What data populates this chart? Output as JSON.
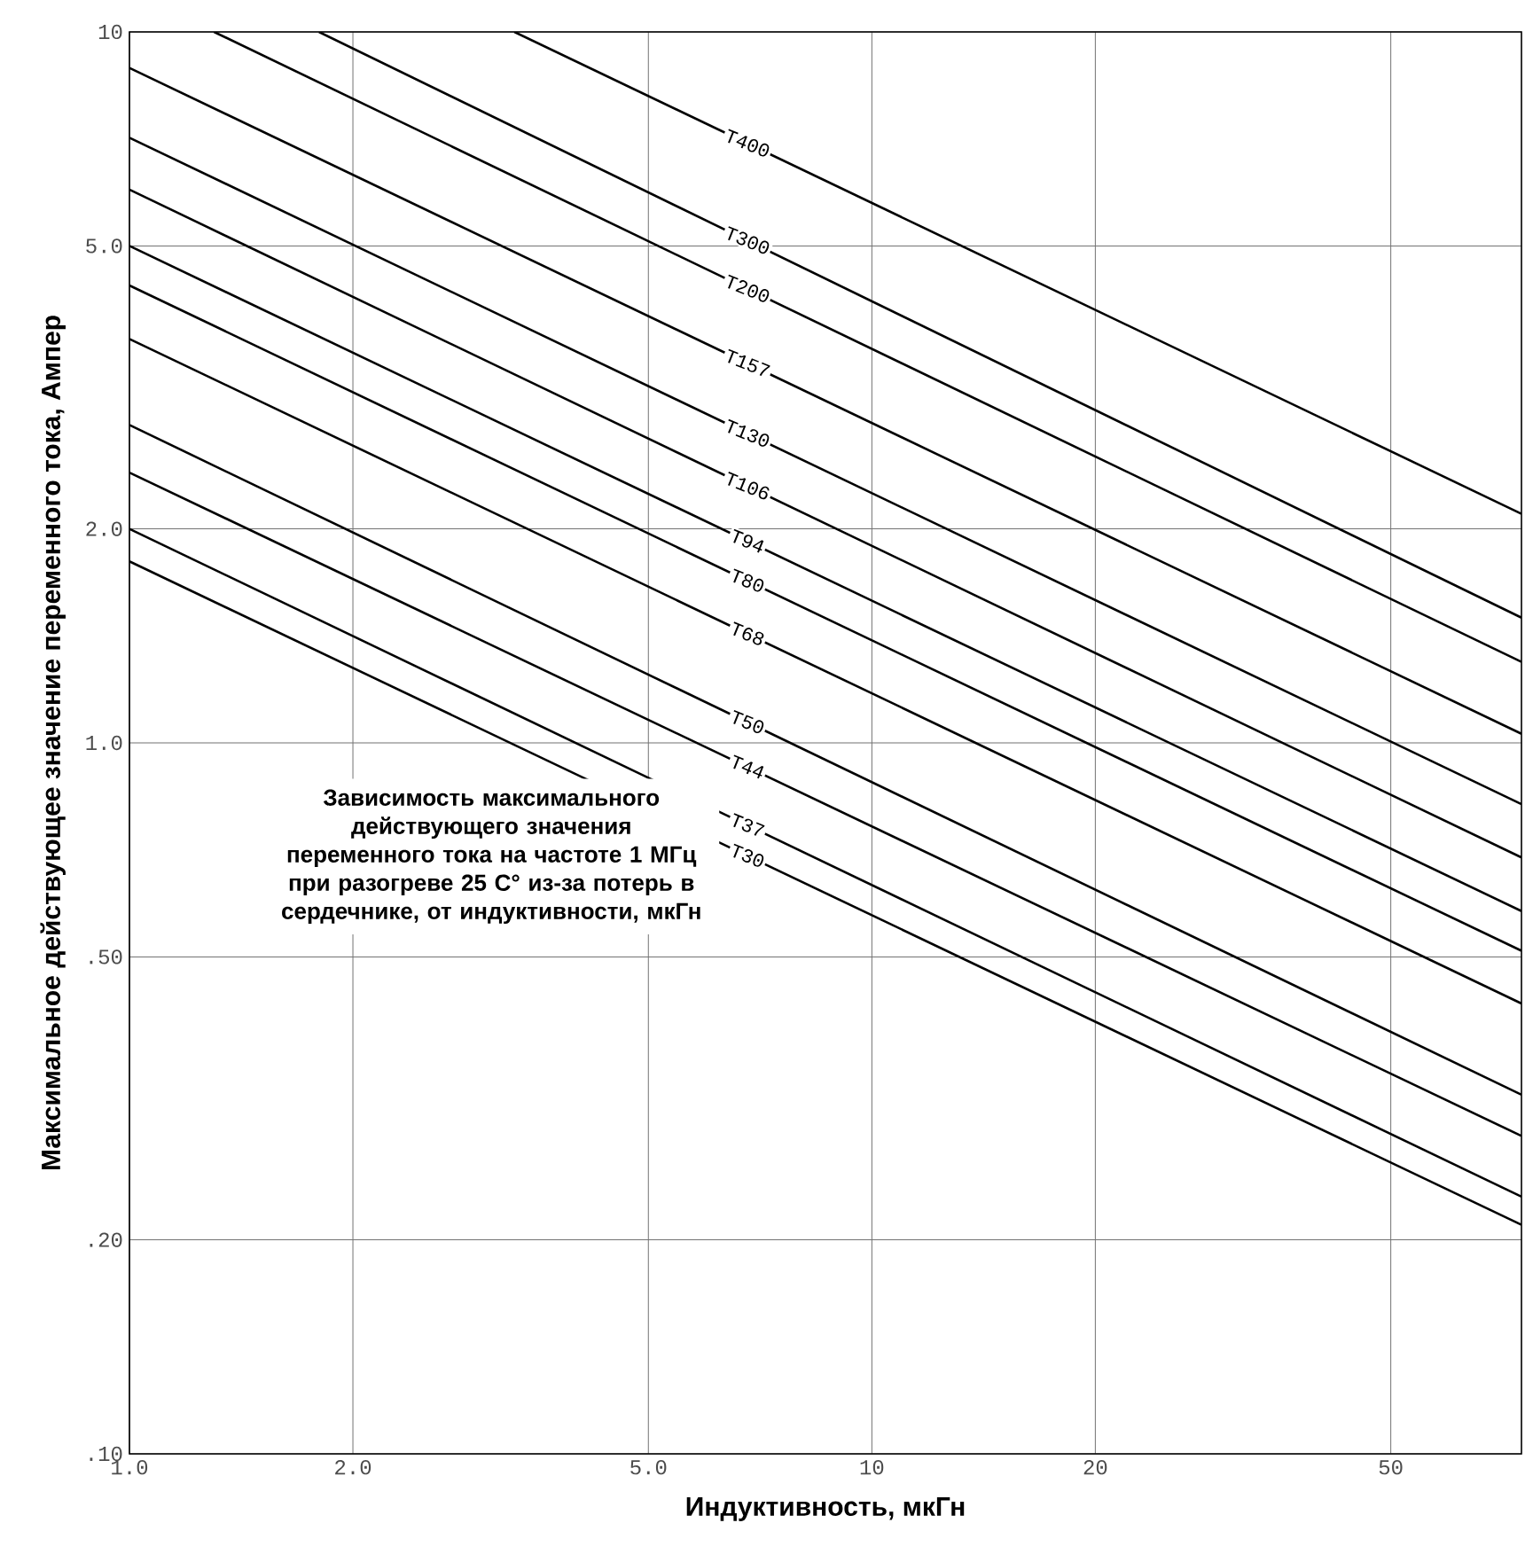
{
  "chart_data": {
    "type": "line",
    "xlabel": "Индуктивность, мкГн",
    "ylabel": "Максимальное действующее значение переменного тока, Ампер",
    "xlim": [
      1,
      75
    ],
    "ylim": [
      0.1,
      10
    ],
    "xticks": [
      {
        "value": 1,
        "label": "1.0"
      },
      {
        "value": 2,
        "label": "2.0"
      },
      {
        "value": 5,
        "label": "5.0"
      },
      10,
      20,
      50
    ],
    "yticks": [
      {
        "value": 0.1,
        "label": ".10"
      },
      {
        "value": 0.2,
        "label": ".20"
      },
      {
        "value": 0.5,
        "label": ".50"
      },
      {
        "value": 1,
        "label": "1.0"
      },
      {
        "value": 2,
        "label": "2.0"
      },
      {
        "value": 5,
        "label": "5.0"
      },
      10
    ],
    "log": "xy",
    "grid": true,
    "line_style": "solid",
    "series": [
      {
        "name": "T400",
        "color": "#000000",
        "x": [
          3.3,
          75
        ],
        "values": [
          10,
          2.1
        ]
      },
      {
        "name": "T300",
        "color": "#000000",
        "x": [
          1.8,
          75
        ],
        "values": [
          10,
          1.5
        ]
      },
      {
        "name": "T200",
        "color": "#000000",
        "x": [
          1.3,
          75
        ],
        "values": [
          10,
          1.3
        ]
      },
      {
        "name": "T157",
        "color": "#000000",
        "x": [
          1,
          75
        ],
        "values": [
          8.9,
          1.03
        ]
      },
      {
        "name": "T130",
        "color": "#000000",
        "x": [
          1,
          75
        ],
        "values": [
          7.1,
          0.82
        ]
      },
      {
        "name": "T106",
        "color": "#000000",
        "x": [
          1,
          75
        ],
        "values": [
          6.0,
          0.69
        ]
      },
      {
        "name": "T94",
        "color": "#000000",
        "x": [
          1,
          75
        ],
        "values": [
          5.0,
          0.58
        ]
      },
      {
        "name": "T80",
        "color": "#000000",
        "x": [
          1,
          75
        ],
        "values": [
          4.4,
          0.51
        ]
      },
      {
        "name": "T68",
        "color": "#000000",
        "x": [
          1,
          75
        ],
        "values": [
          3.7,
          0.43
        ]
      },
      {
        "name": "T50",
        "color": "#000000",
        "x": [
          1,
          75
        ],
        "values": [
          2.8,
          0.32
        ]
      },
      {
        "name": "T44",
        "color": "#000000",
        "x": [
          1,
          75
        ],
        "values": [
          2.4,
          0.28
        ]
      },
      {
        "name": "T37",
        "color": "#000000",
        "x": [
          1,
          75
        ],
        "values": [
          2.0,
          0.23
        ]
      },
      {
        "name": "T30",
        "color": "#000000",
        "x": [
          1,
          75
        ],
        "values": [
          1.8,
          0.21
        ]
      }
    ],
    "annotations": [
      "Зависимость максимального действующего значения переменного тока на частоте 1 МГц  при разогреве 25 С° из-за потерь в сердечнике, от индуктивности, мкГн"
    ]
  }
}
